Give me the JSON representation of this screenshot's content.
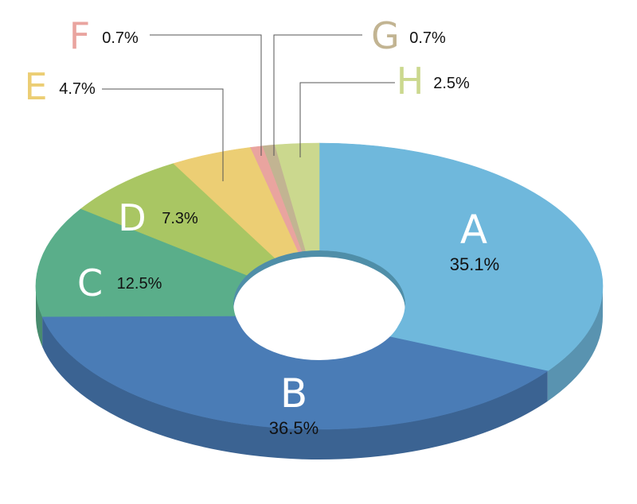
{
  "chart_data": {
    "type": "pie",
    "variant": "3d-donut",
    "title": "",
    "slices": [
      {
        "label": "A",
        "value": 35.1,
        "value_label": "35.1%",
        "color": "#6fb8dc"
      },
      {
        "label": "B",
        "value": 36.5,
        "value_label": "36.5%",
        "color": "#4a7cb6"
      },
      {
        "label": "C",
        "value": 12.5,
        "value_label": "12.5%",
        "color": "#5aae8a"
      },
      {
        "label": "D",
        "value": 7.3,
        "value_label": "7.3%",
        "color": "#a9c663"
      },
      {
        "label": "E",
        "value": 4.7,
        "value_label": "4.7%",
        "color": "#ecce74"
      },
      {
        "label": "F",
        "value": 0.7,
        "value_label": "0.7%",
        "color": "#e9a49f"
      },
      {
        "label": "G",
        "value": 0.7,
        "value_label": "0.7%",
        "color": "#c2b492"
      },
      {
        "label": "H",
        "value": 2.5,
        "value_label": "2.5%",
        "color": "#cbd88e"
      }
    ],
    "legend": "none"
  }
}
